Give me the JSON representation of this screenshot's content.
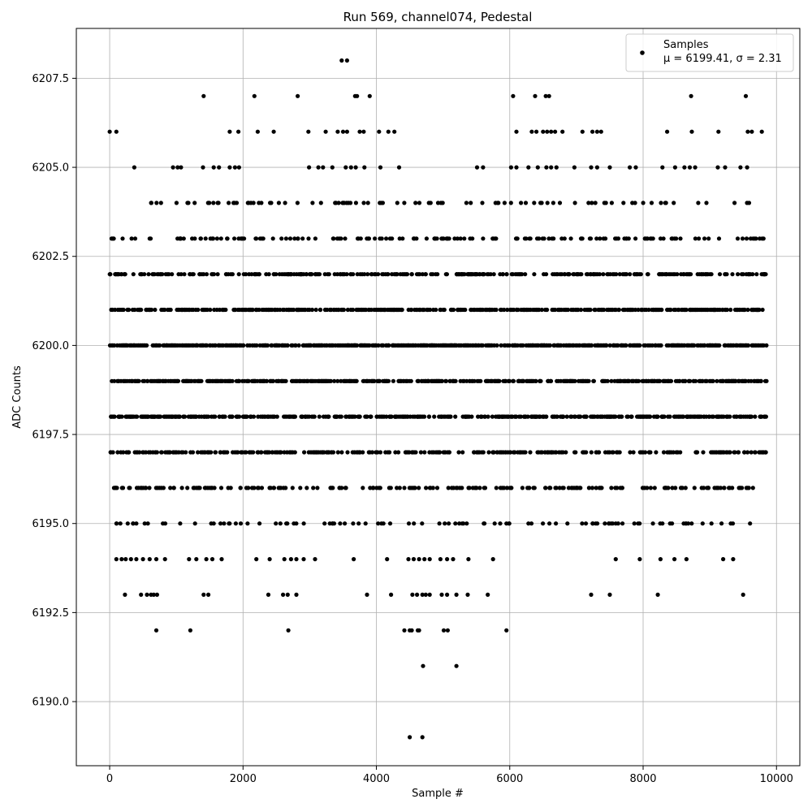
{
  "chart_data": {
    "type": "scatter",
    "title": "Run 569, channel074, Pedestal",
    "xlabel": "Sample #",
    "ylabel": "ADC Counts",
    "xlim": [
      -500,
      10350
    ],
    "ylim": [
      6188.2,
      6208.9
    ],
    "x_ticks": [
      0,
      2000,
      4000,
      6000,
      8000,
      10000
    ],
    "x_tick_labels": [
      "0",
      "2000",
      "4000",
      "6000",
      "8000",
      "10000"
    ],
    "y_ticks": [
      6190.0,
      6192.5,
      6195.0,
      6197.5,
      6200.0,
      6202.5,
      6205.0,
      6207.5
    ],
    "y_tick_labels": [
      "6190.0",
      "6192.5",
      "6195.0",
      "6197.5",
      "6200.0",
      "6202.5",
      "6205.0",
      "6207.5"
    ],
    "grid": true,
    "legend_position": "top-right",
    "colors": {
      "marker": "#000000",
      "grid": "#b0b0b0",
      "frame": "#000000"
    },
    "series": [
      {
        "name": "Samples",
        "legend_stats": "μ = 6199.41, σ = 2.31",
        "mean": 6199.41,
        "std": 2.31,
        "n_samples": 9850,
        "note_levels": "dense rows at integer ADC levels 6195–6204; sparse outliers listed below",
        "sparse_points": [
          {
            "x": 3480,
            "y": 6208
          },
          {
            "x": 3560,
            "y": 6208
          },
          {
            "x": 1410,
            "y": 6207
          },
          {
            "x": 2170,
            "y": 6207
          },
          {
            "x": 2820,
            "y": 6207
          },
          {
            "x": 3680,
            "y": 6207
          },
          {
            "x": 3710,
            "y": 6207
          },
          {
            "x": 3900,
            "y": 6207
          },
          {
            "x": 6050,
            "y": 6207
          },
          {
            "x": 6380,
            "y": 6207
          },
          {
            "x": 6540,
            "y": 6207
          },
          {
            "x": 6590,
            "y": 6207
          },
          {
            "x": 8720,
            "y": 6207
          },
          {
            "x": 9540,
            "y": 6207
          },
          {
            "x": 0,
            "y": 6206
          },
          {
            "x": 100,
            "y": 6206
          },
          {
            "x": 1800,
            "y": 6206
          },
          {
            "x": 1930,
            "y": 6206
          },
          {
            "x": 2220,
            "y": 6206
          },
          {
            "x": 2460,
            "y": 6206
          },
          {
            "x": 2980,
            "y": 6206
          },
          {
            "x": 3240,
            "y": 6206
          },
          {
            "x": 3420,
            "y": 6206
          },
          {
            "x": 3500,
            "y": 6206
          },
          {
            "x": 3560,
            "y": 6206
          },
          {
            "x": 3750,
            "y": 6206
          },
          {
            "x": 3810,
            "y": 6206
          },
          {
            "x": 4040,
            "y": 6206
          },
          {
            "x": 4180,
            "y": 6206
          },
          {
            "x": 4270,
            "y": 6206
          },
          {
            "x": 6100,
            "y": 6206
          },
          {
            "x": 6330,
            "y": 6206
          },
          {
            "x": 6400,
            "y": 6206
          },
          {
            "x": 6500,
            "y": 6206
          },
          {
            "x": 6560,
            "y": 6206
          },
          {
            "x": 6620,
            "y": 6206
          },
          {
            "x": 6680,
            "y": 6206
          },
          {
            "x": 6790,
            "y": 6206
          },
          {
            "x": 7090,
            "y": 6206
          },
          {
            "x": 7240,
            "y": 6206
          },
          {
            "x": 7310,
            "y": 6206
          },
          {
            "x": 7370,
            "y": 6206
          },
          {
            "x": 8360,
            "y": 6206
          },
          {
            "x": 8730,
            "y": 6206
          },
          {
            "x": 9130,
            "y": 6206
          },
          {
            "x": 9570,
            "y": 6206
          },
          {
            "x": 9630,
            "y": 6206
          },
          {
            "x": 9780,
            "y": 6206
          },
          {
            "x": 370,
            "y": 6205
          },
          {
            "x": 950,
            "y": 6205
          },
          {
            "x": 1020,
            "y": 6205
          },
          {
            "x": 1070,
            "y": 6205
          },
          {
            "x": 1400,
            "y": 6205
          },
          {
            "x": 1560,
            "y": 6205
          },
          {
            "x": 1640,
            "y": 6205
          },
          {
            "x": 1800,
            "y": 6205
          },
          {
            "x": 1880,
            "y": 6205
          },
          {
            "x": 1940,
            "y": 6205
          },
          {
            "x": 2990,
            "y": 6205
          },
          {
            "x": 3130,
            "y": 6205
          },
          {
            "x": 3200,
            "y": 6205
          },
          {
            "x": 3340,
            "y": 6205
          },
          {
            "x": 3540,
            "y": 6205
          },
          {
            "x": 3620,
            "y": 6205
          },
          {
            "x": 3690,
            "y": 6205
          },
          {
            "x": 3820,
            "y": 6205
          },
          {
            "x": 4060,
            "y": 6205
          },
          {
            "x": 4340,
            "y": 6205
          },
          {
            "x": 5510,
            "y": 6205
          },
          {
            "x": 5600,
            "y": 6205
          },
          {
            "x": 6020,
            "y": 6205
          },
          {
            "x": 6100,
            "y": 6205
          },
          {
            "x": 6280,
            "y": 6205
          },
          {
            "x": 6420,
            "y": 6205
          },
          {
            "x": 6550,
            "y": 6205
          },
          {
            "x": 6620,
            "y": 6205
          },
          {
            "x": 6700,
            "y": 6205
          },
          {
            "x": 6970,
            "y": 6205
          },
          {
            "x": 7220,
            "y": 6205
          },
          {
            "x": 7310,
            "y": 6205
          },
          {
            "x": 7500,
            "y": 6205
          },
          {
            "x": 7800,
            "y": 6205
          },
          {
            "x": 7890,
            "y": 6205
          },
          {
            "x": 8290,
            "y": 6205
          },
          {
            "x": 8480,
            "y": 6205
          },
          {
            "x": 8620,
            "y": 6205
          },
          {
            "x": 8700,
            "y": 6205
          },
          {
            "x": 8780,
            "y": 6205
          },
          {
            "x": 9120,
            "y": 6205
          },
          {
            "x": 9230,
            "y": 6205
          },
          {
            "x": 9460,
            "y": 6205
          },
          {
            "x": 9560,
            "y": 6205
          },
          {
            "x": 100,
            "y": 6194
          },
          {
            "x": 180,
            "y": 6194
          },
          {
            "x": 240,
            "y": 6194
          },
          {
            "x": 320,
            "y": 6194
          },
          {
            "x": 400,
            "y": 6194
          },
          {
            "x": 500,
            "y": 6194
          },
          {
            "x": 600,
            "y": 6194
          },
          {
            "x": 700,
            "y": 6194
          },
          {
            "x": 830,
            "y": 6194
          },
          {
            "x": 1190,
            "y": 6194
          },
          {
            "x": 1300,
            "y": 6194
          },
          {
            "x": 1450,
            "y": 6194
          },
          {
            "x": 1540,
            "y": 6194
          },
          {
            "x": 1680,
            "y": 6194
          },
          {
            "x": 2200,
            "y": 6194
          },
          {
            "x": 2400,
            "y": 6194
          },
          {
            "x": 2620,
            "y": 6194
          },
          {
            "x": 2720,
            "y": 6194
          },
          {
            "x": 2800,
            "y": 6194
          },
          {
            "x": 2910,
            "y": 6194
          },
          {
            "x": 3080,
            "y": 6194
          },
          {
            "x": 3660,
            "y": 6194
          },
          {
            "x": 4160,
            "y": 6194
          },
          {
            "x": 4480,
            "y": 6194
          },
          {
            "x": 4560,
            "y": 6194
          },
          {
            "x": 4640,
            "y": 6194
          },
          {
            "x": 4720,
            "y": 6194
          },
          {
            "x": 4800,
            "y": 6194
          },
          {
            "x": 4960,
            "y": 6194
          },
          {
            "x": 5060,
            "y": 6194
          },
          {
            "x": 5150,
            "y": 6194
          },
          {
            "x": 5380,
            "y": 6194
          },
          {
            "x": 5750,
            "y": 6194
          },
          {
            "x": 7590,
            "y": 6194
          },
          {
            "x": 7950,
            "y": 6194
          },
          {
            "x": 8260,
            "y": 6194
          },
          {
            "x": 8470,
            "y": 6194
          },
          {
            "x": 8650,
            "y": 6194
          },
          {
            "x": 9200,
            "y": 6194
          },
          {
            "x": 9350,
            "y": 6194
          },
          {
            "x": 230,
            "y": 6193
          },
          {
            "x": 470,
            "y": 6193
          },
          {
            "x": 560,
            "y": 6193
          },
          {
            "x": 620,
            "y": 6193
          },
          {
            "x": 660,
            "y": 6193
          },
          {
            "x": 710,
            "y": 6193
          },
          {
            "x": 1410,
            "y": 6193
          },
          {
            "x": 1480,
            "y": 6193
          },
          {
            "x": 2380,
            "y": 6193
          },
          {
            "x": 2600,
            "y": 6193
          },
          {
            "x": 2670,
            "y": 6193
          },
          {
            "x": 2800,
            "y": 6193
          },
          {
            "x": 3860,
            "y": 6193
          },
          {
            "x": 4220,
            "y": 6193
          },
          {
            "x": 4540,
            "y": 6193
          },
          {
            "x": 4610,
            "y": 6193
          },
          {
            "x": 4690,
            "y": 6193
          },
          {
            "x": 4740,
            "y": 6193
          },
          {
            "x": 4800,
            "y": 6193
          },
          {
            "x": 4980,
            "y": 6193
          },
          {
            "x": 5060,
            "y": 6193
          },
          {
            "x": 5200,
            "y": 6193
          },
          {
            "x": 5370,
            "y": 6193
          },
          {
            "x": 5670,
            "y": 6193
          },
          {
            "x": 7220,
            "y": 6193
          },
          {
            "x": 7500,
            "y": 6193
          },
          {
            "x": 8220,
            "y": 6193
          },
          {
            "x": 9500,
            "y": 6193
          },
          {
            "x": 700,
            "y": 6192
          },
          {
            "x": 1210,
            "y": 6192
          },
          {
            "x": 2680,
            "y": 6192
          },
          {
            "x": 4420,
            "y": 6192
          },
          {
            "x": 4500,
            "y": 6192
          },
          {
            "x": 4530,
            "y": 6192
          },
          {
            "x": 4620,
            "y": 6192
          },
          {
            "x": 4640,
            "y": 6192
          },
          {
            "x": 5010,
            "y": 6192
          },
          {
            "x": 5070,
            "y": 6192
          },
          {
            "x": 5950,
            "y": 6192
          },
          {
            "x": 4700,
            "y": 6191
          },
          {
            "x": 5200,
            "y": 6191
          },
          {
            "x": 4500,
            "y": 6189
          },
          {
            "x": 4690,
            "y": 6189
          }
        ]
      }
    ]
  }
}
